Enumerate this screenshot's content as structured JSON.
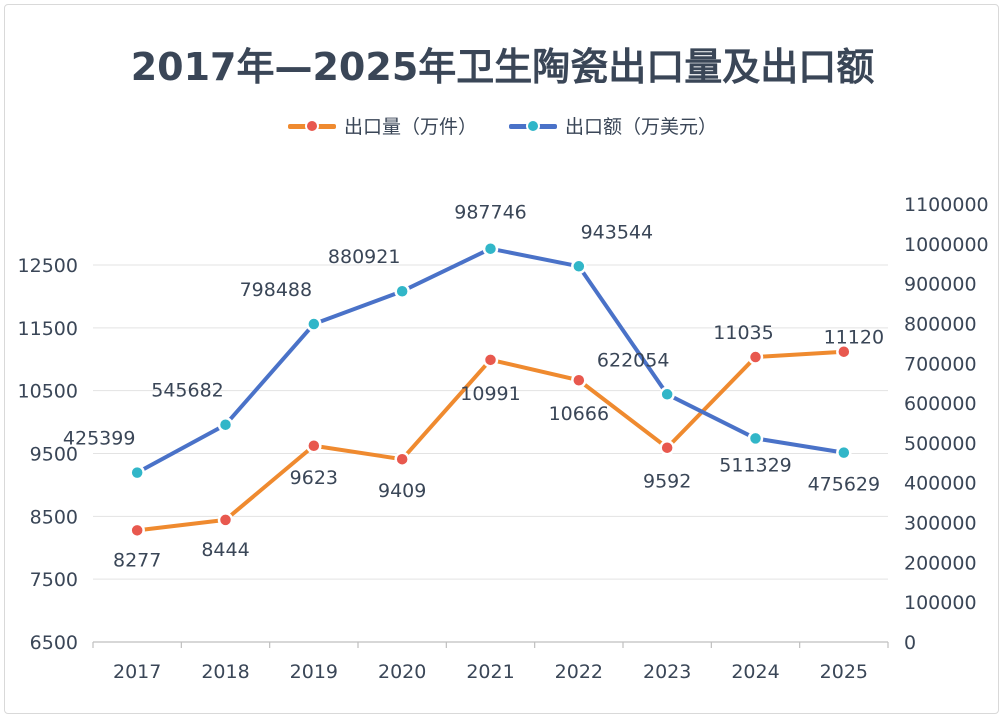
{
  "chart_data": {
    "type": "line",
    "title": "2017年—2025年卫生陶瓷出口量及出口额",
    "categories": [
      "2017",
      "2018",
      "2019",
      "2020",
      "2021",
      "2022",
      "2023",
      "2024",
      "2025"
    ],
    "series": [
      {
        "name": "出口量（万件）",
        "axis": "left",
        "color": "#ef8a2f",
        "marker_color": "#e8584e",
        "values": [
          8277,
          8444,
          9623,
          9409,
          10991,
          10666,
          9592,
          11035,
          11120
        ],
        "labels": [
          "8277",
          "8444",
          "9623",
          "9409",
          "10991",
          "10666",
          "9592",
          "11035",
          "11120"
        ]
      },
      {
        "name": "出口额（万美元）",
        "axis": "right",
        "color": "#4a72c8",
        "marker_color": "#31b6c8",
        "values": [
          425399,
          545682,
          798488,
          880921,
          987746,
          943544,
          622054,
          511329,
          475629
        ],
        "labels": [
          "425399",
          "545682",
          "798488",
          "880921",
          "987746",
          "943544",
          "622054",
          "511329",
          "475629"
        ]
      }
    ],
    "y_left": {
      "min": 6500,
      "max": 13500,
      "ticks": [
        "6500",
        "7500",
        "8500",
        "9500",
        "10500",
        "11500",
        "12500"
      ],
      "tick_values": [
        6500,
        7500,
        8500,
        9500,
        10500,
        11500,
        12500
      ]
    },
    "y_right": {
      "min": 0,
      "max": 1100000,
      "ticks": [
        "0",
        "100000",
        "200000",
        "300000",
        "400000",
        "500000",
        "600000",
        "700000",
        "800000",
        "900000",
        "1000000",
        "1100000"
      ],
      "tick_values": [
        0,
        100000,
        200000,
        300000,
        400000,
        500000,
        600000,
        700000,
        800000,
        900000,
        1000000,
        1100000
      ]
    },
    "grid": "horizontal",
    "legend_position": "top-center"
  }
}
